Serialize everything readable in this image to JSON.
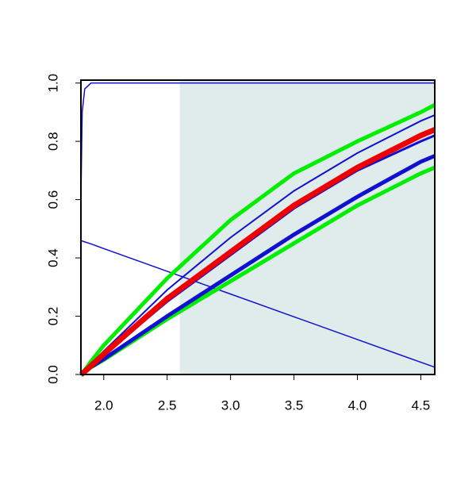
{
  "chart_data": {
    "type": "line",
    "x": [
      1.82,
      1.83,
      1.85,
      1.9,
      2.0,
      2.5,
      3.0,
      3.5,
      4.0,
      4.5,
      4.61
    ],
    "xlim": [
      1.82,
      4.61
    ],
    "ylim": [
      0,
      1.01
    ],
    "xticks": [
      {
        "value": 2,
        "label": "2.0"
      },
      2.5,
      {
        "value": 3,
        "label": "3.0"
      },
      3.5,
      {
        "value": 4,
        "label": "4.0"
      },
      4.5
    ],
    "yticks": [
      {
        "value": 0,
        "label": "0.0"
      },
      0.2,
      0.4,
      0.6,
      0.8,
      {
        "value": 1,
        "label": "1.0"
      }
    ],
    "shaded_xlim": [
      2.6,
      4.61
    ],
    "shade_color": "#e0eceb",
    "series": [
      {
        "color": "#1010d0",
        "lwd": 1.5,
        "values": [
          0.6,
          0.9,
          0.98,
          1.0,
          1.0,
          1.0,
          1.0,
          1.0,
          1.0,
          1.0,
          1.0
        ]
      },
      {
        "color": "#1010d0",
        "lwd": 1.5,
        "values": [
          0.46,
          0.458,
          0.455,
          0.448,
          0.432,
          0.354,
          0.276,
          0.198,
          0.12,
          0.042,
          0.025
        ]
      },
      {
        "color": "#1010d0",
        "lwd": 2,
        "values": [
          0,
          0.004,
          0.012,
          0.035,
          0.08,
          0.29,
          0.47,
          0.63,
          0.76,
          0.87,
          0.89
        ]
      },
      {
        "color": "#00ee00",
        "lwd": 5,
        "values": [
          0,
          0.005,
          0.015,
          0.045,
          0.1,
          0.33,
          0.53,
          0.69,
          0.8,
          0.9,
          0.925
        ]
      },
      {
        "color": "#00ee00",
        "lwd": 5,
        "values": [
          0,
          0.003,
          0.008,
          0.025,
          0.05,
          0.19,
          0.32,
          0.45,
          0.58,
          0.69,
          0.71
        ]
      },
      {
        "color": "#1010d0",
        "lwd": 5,
        "values": [
          0,
          0.003,
          0.008,
          0.026,
          0.053,
          0.2,
          0.34,
          0.48,
          0.61,
          0.73,
          0.75
        ]
      },
      {
        "color": "#1010d0",
        "lwd": 3,
        "values": [
          0,
          0.003,
          0.01,
          0.03,
          0.068,
          0.25,
          0.41,
          0.57,
          0.7,
          0.8,
          0.82
        ]
      },
      {
        "color": "#ee0000",
        "lwd": 7,
        "values": [
          0,
          0.003,
          0.01,
          0.03,
          0.07,
          0.26,
          0.42,
          0.58,
          0.71,
          0.82,
          0.84
        ]
      }
    ]
  }
}
